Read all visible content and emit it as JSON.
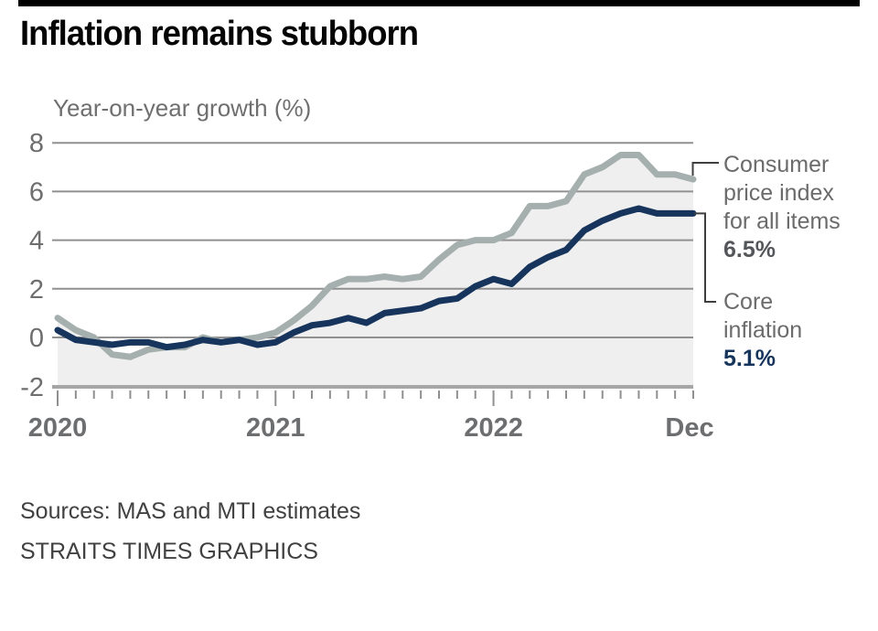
{
  "title": "Inflation remains stubborn",
  "subtitle": "Year-on-year growth (%)",
  "annotations": {
    "cpi": {
      "label_lines": [
        "Consumer",
        "price index",
        "for all items"
      ],
      "value": "6.5%"
    },
    "core": {
      "label_lines": [
        "Core",
        "inflation"
      ],
      "value": "5.1%"
    }
  },
  "footer": {
    "sources": "Sources: MAS and MTI estimates",
    "credit": "STRAITS TIMES GRAPHICS"
  },
  "colors": {
    "top_rule": "#000000",
    "cpi_line": "#a5afae",
    "core_line": "#17355c",
    "area_fill": "#efefef",
    "gridline": "#909090",
    "baseline": "#a6a6a6",
    "tick": "#8f8f8f",
    "axis_text": "#6e6e6e",
    "year_text": "#6d6e70",
    "connector": "#3f3f3f"
  },
  "chart_data": {
    "type": "line",
    "title": "Inflation remains stubborn",
    "ylabel": "Year-on-year growth (%)",
    "grid": true,
    "ylim": [
      -2,
      8
    ],
    "yticks": [
      8,
      6,
      4,
      2,
      0,
      -2
    ],
    "x_months": "Jan 2020 to Dec 2022, monthly",
    "x_tick_labels": [
      {
        "label": "2020",
        "month_index": 0
      },
      {
        "label": "2021",
        "month_index": 12
      },
      {
        "label": "2022",
        "month_index": 24
      },
      {
        "label": "Dec",
        "month_index": 35
      }
    ],
    "series": [
      {
        "name": "Consumer price index for all items",
        "end_label": "6.5%",
        "filled": true,
        "values": [
          0.8,
          0.3,
          0.0,
          -0.7,
          -0.8,
          -0.5,
          -0.4,
          -0.4,
          0.0,
          -0.2,
          -0.1,
          0.0,
          0.2,
          0.7,
          1.3,
          2.1,
          2.4,
          2.4,
          2.5,
          2.4,
          2.5,
          3.2,
          3.8,
          4.0,
          4.0,
          4.3,
          5.4,
          5.4,
          5.6,
          6.7,
          7.0,
          7.5,
          7.5,
          6.7,
          6.7,
          6.5
        ]
      },
      {
        "name": "Core inflation",
        "end_label": "5.1%",
        "filled": false,
        "values": [
          0.3,
          -0.1,
          -0.2,
          -0.3,
          -0.2,
          -0.2,
          -0.4,
          -0.3,
          -0.1,
          -0.2,
          -0.1,
          -0.3,
          -0.2,
          0.2,
          0.5,
          0.6,
          0.8,
          0.6,
          1.0,
          1.1,
          1.2,
          1.5,
          1.6,
          2.1,
          2.4,
          2.2,
          2.9,
          3.3,
          3.6,
          4.4,
          4.8,
          5.1,
          5.3,
          5.1,
          5.1,
          5.1
        ]
      }
    ]
  }
}
